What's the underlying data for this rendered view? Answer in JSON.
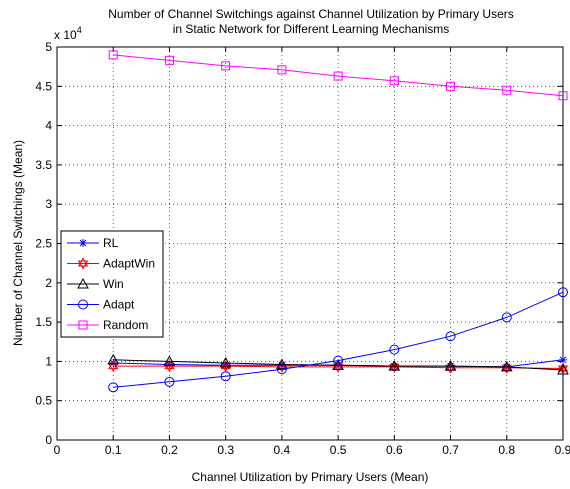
{
  "chart_data": {
    "type": "line",
    "title_lines": [
      "Number of Channel Switchings against Channel Utilization by Primary Users",
      "in Static Network for Different Learning Mechanisms"
    ],
    "xlabel": "Channel Utilization by Primary Users (Mean)",
    "ylabel": "Number of Channel Switchings (Mean)",
    "exponent_base": "x 10",
    "exponent_power": "4",
    "xlim": [
      0,
      0.9
    ],
    "ylim": [
      0,
      5
    ],
    "xticks": [
      "0",
      "0.1",
      "0.2",
      "0.3",
      "0.4",
      "0.5",
      "0.6",
      "0.7",
      "0.8",
      "0.9"
    ],
    "yticks": [
      "0",
      "0.5",
      "1",
      "1.5",
      "2",
      "2.5",
      "3",
      "3.5",
      "4",
      "4.5",
      "5"
    ],
    "grid": true,
    "legend_position": "left-middle",
    "x": [
      0.1,
      0.2,
      0.3,
      0.4,
      0.5,
      0.6,
      0.7,
      0.8,
      0.9
    ],
    "series": [
      {
        "name": "RL",
        "marker": "star",
        "color": "#0000ff",
        "values": [
          0.98,
          0.96,
          0.95,
          0.95,
          0.95,
          0.94,
          0.94,
          0.93,
          1.02
        ]
      },
      {
        "name": "AdaptWin",
        "marker": "hexagram",
        "color": "#ff0000",
        "values": [
          0.94,
          0.94,
          0.94,
          0.93,
          0.93,
          0.93,
          0.92,
          0.92,
          0.91
        ]
      },
      {
        "name": "Win",
        "marker": "triangle",
        "color": "#000000",
        "values": [
          1.02,
          1.0,
          0.98,
          0.96,
          0.95,
          0.94,
          0.94,
          0.93,
          0.89
        ]
      },
      {
        "name": "Adapt",
        "marker": "circle",
        "color": "#0000ff",
        "values": [
          0.67,
          0.74,
          0.81,
          0.9,
          1.01,
          1.15,
          1.32,
          1.56,
          1.88
        ]
      },
      {
        "name": "Random",
        "marker": "square",
        "color": "#ff00ff",
        "values": [
          4.9,
          4.83,
          4.76,
          4.71,
          4.63,
          4.57,
          4.5,
          4.45,
          4.38
        ]
      }
    ]
  }
}
